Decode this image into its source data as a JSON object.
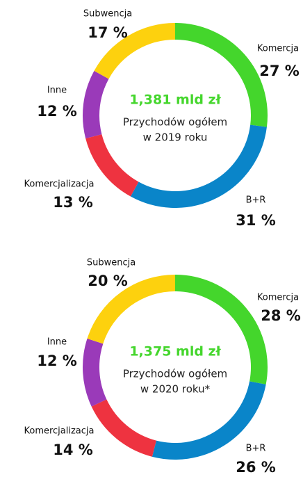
{
  "chart_data": [
    {
      "type": "pie",
      "donut": true,
      "center_title": "1,381 mld zł",
      "center_lines": [
        "Przychodów ogółem",
        "w 2019 roku"
      ],
      "categories": [
        "Komercja",
        "B+R",
        "Komercjalizacja",
        "Inne",
        "Subwencja"
      ],
      "values": [
        27,
        31,
        13,
        12,
        17
      ],
      "value_labels": [
        "27 %",
        "31 %",
        "13 %",
        "12 %",
        "17 %"
      ],
      "colors": [
        "#44d62c",
        "#0a85c9",
        "#ee3340",
        "#9a3ab9",
        "#fdd10e"
      ]
    },
    {
      "type": "pie",
      "donut": true,
      "center_title": "1,375 mld zł",
      "center_lines": [
        "Przychodów ogółem",
        "w 2020 roku*"
      ],
      "categories": [
        "Komercja",
        "B+R",
        "Komercjalizacja",
        "Inne",
        "Subwencja"
      ],
      "values": [
        28,
        26,
        14,
        12,
        20
      ],
      "value_labels": [
        "28 %",
        "26 %",
        "14 %",
        "12 %",
        "20 %"
      ],
      "colors": [
        "#44d62c",
        "#0a85c9",
        "#ee3340",
        "#9a3ab9",
        "#fdd10e"
      ]
    }
  ]
}
